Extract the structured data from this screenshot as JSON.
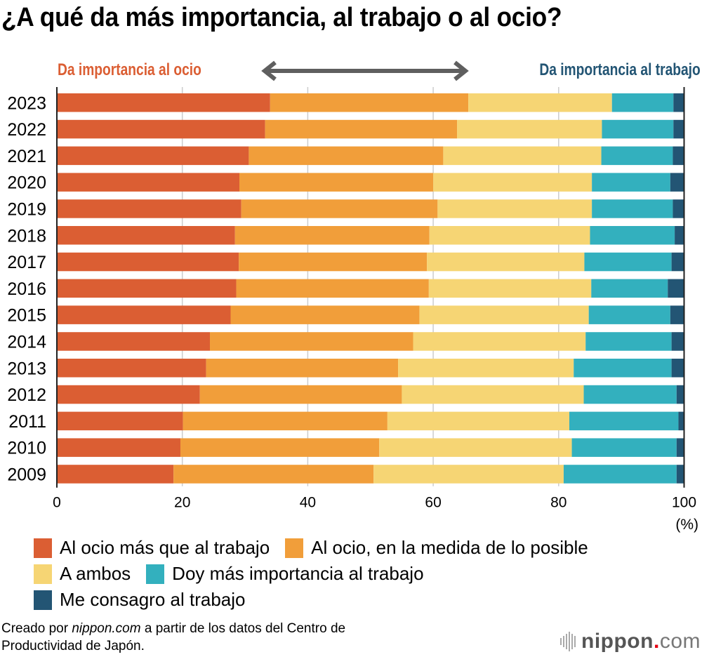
{
  "chart_data": {
    "type": "bar",
    "orientation": "horizontal",
    "stacked": true,
    "title": "¿A qué da más importancia, al trabajo o al ocio?",
    "direction_labels": {
      "left": "Da importancia al ocio",
      "right": "Da importancia al trabajo"
    },
    "xlabel": "",
    "unit_label": "(%)",
    "ylabel": "",
    "xlim": [
      0,
      100
    ],
    "xticks": [
      "0",
      "20",
      "40",
      "60",
      "80",
      "100"
    ],
    "grid": true,
    "legend_position": "bottom",
    "categories": [
      "2023",
      "2022",
      "2021",
      "2020",
      "2019",
      "2018",
      "2017",
      "2016",
      "2015",
      "2014",
      "2013",
      "2012",
      "2011",
      "2010",
      "2009"
    ],
    "series": [
      {
        "name": "Al ocio más que al trabajo",
        "color": "#db5e33",
        "values": [
          34.0,
          33.2,
          30.6,
          29.1,
          29.4,
          28.4,
          29.0,
          28.6,
          27.7,
          24.4,
          23.8,
          22.8,
          20.1,
          19.7,
          18.6
        ]
      },
      {
        "name": "Al ocio, en la medida de lo posible",
        "color": "#f19e3a",
        "values": [
          31.6,
          30.6,
          31.0,
          30.9,
          31.3,
          31.0,
          30.0,
          30.7,
          30.1,
          32.4,
          30.6,
          32.2,
          32.6,
          31.7,
          31.9
        ]
      },
      {
        "name": "A ambos",
        "color": "#f6d574",
        "values": [
          22.9,
          23.1,
          25.2,
          25.3,
          24.6,
          25.6,
          25.1,
          25.9,
          27.0,
          27.5,
          28.0,
          29.0,
          29.0,
          30.7,
          30.3
        ]
      },
      {
        "name": "Doy más importancia al trabajo",
        "color": "#33b0be",
        "values": [
          9.8,
          11.4,
          11.4,
          12.5,
          12.9,
          13.5,
          13.9,
          12.2,
          13.0,
          13.7,
          15.6,
          14.8,
          17.4,
          16.7,
          18.0
        ]
      },
      {
        "name": "Me consagro al trabajo",
        "color": "#235574",
        "values": [
          1.7,
          1.7,
          1.8,
          2.2,
          1.8,
          1.5,
          2.0,
          2.6,
          2.2,
          2.0,
          2.0,
          1.2,
          0.9,
          1.2,
          1.2
        ]
      }
    ]
  },
  "colors": {
    "arrow": "#5f5f5f",
    "left_label": "#db5e33",
    "right_label": "#235574",
    "gridline": "#cccccc"
  },
  "source": {
    "prefix": "Creado por ",
    "site": "nippon.com",
    "suffix": " a partir de los datos del Centro de",
    "line2": "Productividad de Japón."
  },
  "logo": {
    "name": "nippon",
    "dot": ".",
    "tld": "com"
  }
}
